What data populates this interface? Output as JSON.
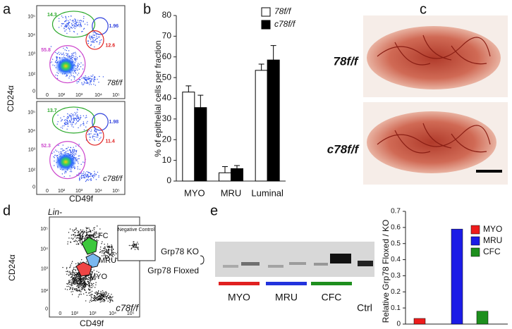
{
  "panel_labels": [
    "a",
    "b",
    "c",
    "d",
    "e"
  ],
  "panel_a": {
    "y_label": "CD24α",
    "x_label": "CD49f",
    "y_ticks": [
      "10⁵",
      "10⁴",
      "10³",
      "10²",
      "0"
    ],
    "x_ticks": [
      "0",
      "10²",
      "10³",
      "10⁴",
      "10⁵"
    ],
    "plots": [
      {
        "gates": [
          {
            "label": "14.3",
            "color": "#2aa82a"
          },
          {
            "label": "1.96",
            "color": "#3344dd"
          },
          {
            "label": "12.6",
            "color": "#e02020"
          },
          {
            "label": "55.8",
            "color": "#cc44cc"
          }
        ],
        "genotype": "78f/f"
      },
      {
        "gates": [
          {
            "label": "13.7",
            "color": "#2aa82a"
          },
          {
            "label": "1.98",
            "color": "#3344dd"
          },
          {
            "label": "11.4",
            "color": "#e02020"
          },
          {
            "label": "52.3",
            "color": "#cc44cc"
          }
        ],
        "genotype": "c78f/f"
      }
    ]
  },
  "panel_c": {
    "labels": [
      "78f/f",
      "c78f/f"
    ]
  },
  "panel_d": {
    "gate_label": "Lin-",
    "inset": "Negative Control",
    "populations": [
      "CFC",
      "MRU",
      "MYO"
    ],
    "genotype": "c78f/f",
    "y_label": "CD24α",
    "x_label": "CD49f",
    "y_ticks": [
      "10⁵",
      "10⁴",
      "10³",
      "10²",
      "0"
    ],
    "x_ticks": [
      "0",
      "10²",
      "10³",
      "10⁴",
      "10⁵"
    ]
  },
  "panel_e": {
    "bands": [
      "Grp78 KO",
      "Grp78 Floxed"
    ],
    "lanes": [
      {
        "label": "MYO",
        "color": "#e02020"
      },
      {
        "label": "MRU",
        "color": "#2233dd"
      },
      {
        "label": "CFC",
        "color": "#1e8f1e"
      }
    ],
    "control": "Ctrl"
  },
  "chart_data": [
    {
      "type": "bar",
      "y_label": "% of epithelial cells per fraction",
      "categories": [
        "MYO",
        "MRU",
        "Luminal"
      ],
      "series": [
        {
          "name": "78f/f",
          "color": "#ffffff",
          "values": [
            43,
            4,
            53.5
          ],
          "errors": [
            3,
            3,
            3
          ]
        },
        {
          "name": "c78f/f",
          "color": "#000000",
          "values": [
            35.5,
            6,
            58.5
          ],
          "errors": [
            6,
            1.5,
            7
          ]
        }
      ],
      "ylim": [
        0,
        80
      ],
      "yticks": [
        0,
        10,
        20,
        30,
        40,
        50,
        60,
        70,
        80
      ]
    },
    {
      "type": "bar",
      "y_label": "Relative Grp78 Floxed / KO",
      "categories": [
        null,
        null,
        null
      ],
      "values": [
        0.035,
        0.59,
        0.08
      ],
      "colors": [
        "#ee1c1c",
        "#1c1ce6",
        "#1e8f1e"
      ],
      "legend": [
        "MYO",
        "MRU",
        "CFC"
      ],
      "ylim": [
        0,
        0.7
      ],
      "yticks": [
        0,
        0.1,
        0.2,
        0.3,
        0.4,
        0.5,
        0.6,
        0.7
      ]
    }
  ]
}
